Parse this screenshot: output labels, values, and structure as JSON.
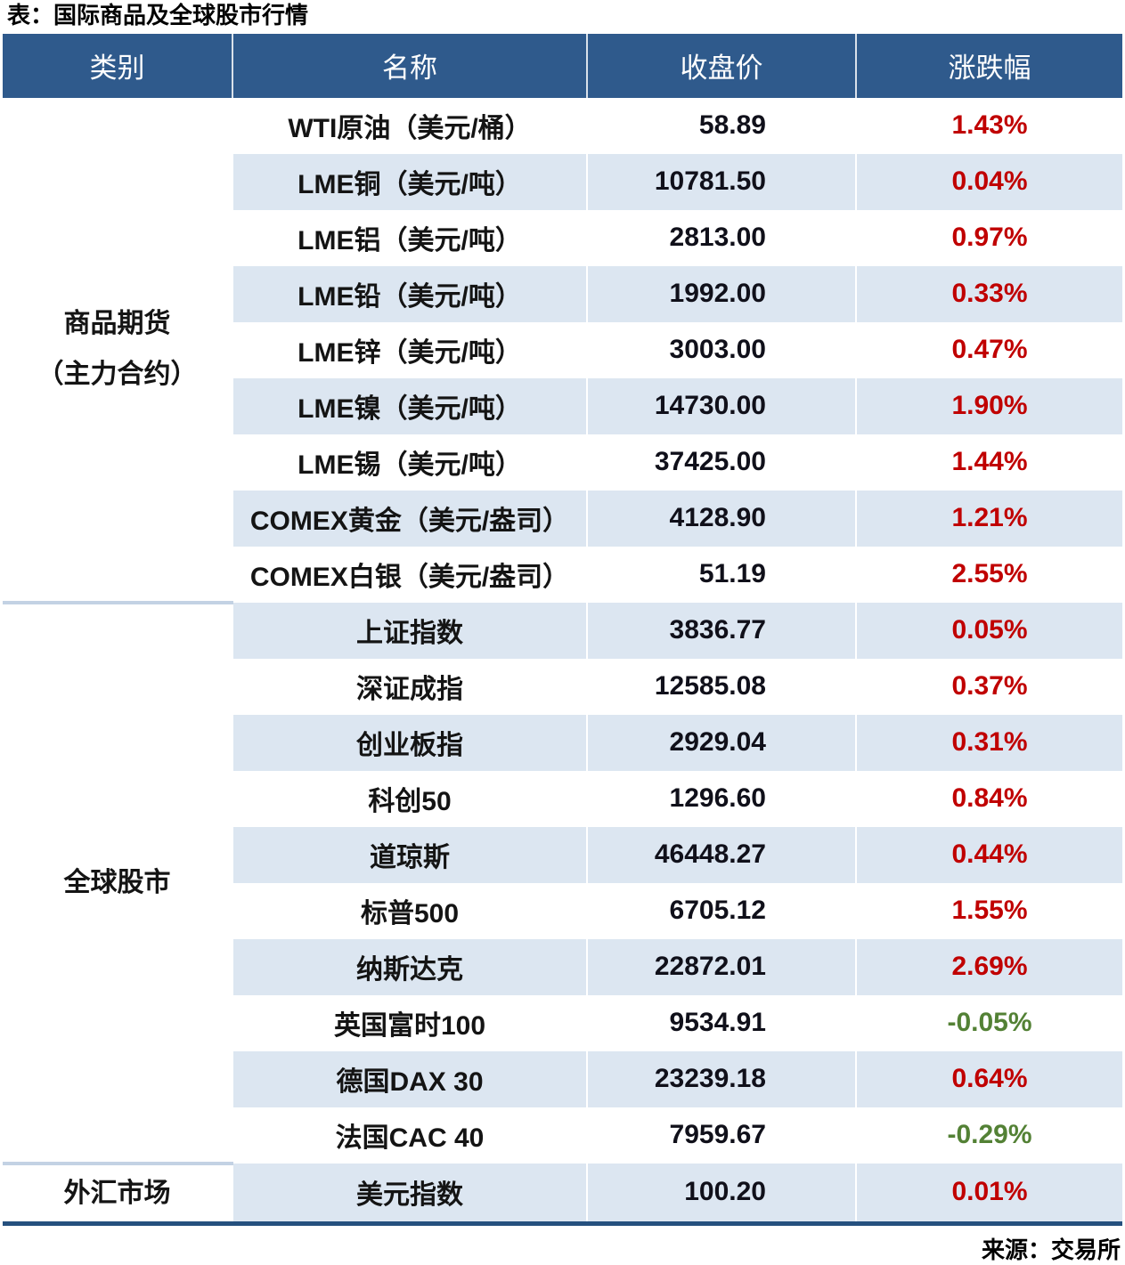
{
  "title": "表：国际商品及全球股市行情",
  "source": "来源：交易所",
  "colors": {
    "header_bg": "#2F5A8C",
    "row_alt_bg": "#DCE6F1",
    "section_divider": "#C3D2E4",
    "bottom_border": "#25507E",
    "up": "#C00000",
    "down": "#538135"
  },
  "chart_data": {
    "type": "table",
    "title": "表：国际商品及全球股市行情",
    "columns": [
      "类别",
      "名称",
      "收盘价",
      "涨跌幅"
    ],
    "sections": [
      {
        "category_lines": [
          "商品期货",
          "（主力合约）"
        ],
        "rows": [
          {
            "name": "WTI原油（美元/桶）",
            "close": "58.89",
            "change": "1.43%",
            "direction": "up"
          },
          {
            "name": "LME铜（美元/吨）",
            "close": "10781.50",
            "change": "0.04%",
            "direction": "up"
          },
          {
            "name": "LME铝（美元/吨）",
            "close": "2813.00",
            "change": "0.97%",
            "direction": "up"
          },
          {
            "name": "LME铅（美元/吨）",
            "close": "1992.00",
            "change": "0.33%",
            "direction": "up"
          },
          {
            "name": "LME锌（美元/吨）",
            "close": "3003.00",
            "change": "0.47%",
            "direction": "up"
          },
          {
            "name": "LME镍（美元/吨）",
            "close": "14730.00",
            "change": "1.90%",
            "direction": "up"
          },
          {
            "name": "LME锡（美元/吨）",
            "close": "37425.00",
            "change": "1.44%",
            "direction": "up"
          },
          {
            "name": "COMEX黄金（美元/盎司）",
            "close": "4128.90",
            "change": "1.21%",
            "direction": "up"
          },
          {
            "name": "COMEX白银（美元/盎司）",
            "close": "51.19",
            "change": "2.55%",
            "direction": "up"
          }
        ]
      },
      {
        "category_lines": [
          "全球股市"
        ],
        "rows": [
          {
            "name": "上证指数",
            "close": "3836.77",
            "change": "0.05%",
            "direction": "up"
          },
          {
            "name": "深证成指",
            "close": "12585.08",
            "change": "0.37%",
            "direction": "up"
          },
          {
            "name": "创业板指",
            "close": "2929.04",
            "change": "0.31%",
            "direction": "up"
          },
          {
            "name": "科创50",
            "close": "1296.60",
            "change": "0.84%",
            "direction": "up"
          },
          {
            "name": "道琼斯",
            "close": "46448.27",
            "change": "0.44%",
            "direction": "up"
          },
          {
            "name": "标普500",
            "close": "6705.12",
            "change": "1.55%",
            "direction": "up"
          },
          {
            "name": "纳斯达克",
            "close": "22872.01",
            "change": "2.69%",
            "direction": "up"
          },
          {
            "name": "英国富时100",
            "close": "9534.91",
            "change": "-0.05%",
            "direction": "down"
          },
          {
            "name": "德国DAX 30",
            "close": "23239.18",
            "change": "0.64%",
            "direction": "up"
          },
          {
            "name": "法国CAC 40",
            "close": "7959.67",
            "change": "-0.29%",
            "direction": "down"
          }
        ]
      },
      {
        "category_lines": [
          "外汇市场"
        ],
        "rows": [
          {
            "name": "美元指数",
            "close": "100.20",
            "change": "0.01%",
            "direction": "up"
          }
        ]
      }
    ]
  }
}
